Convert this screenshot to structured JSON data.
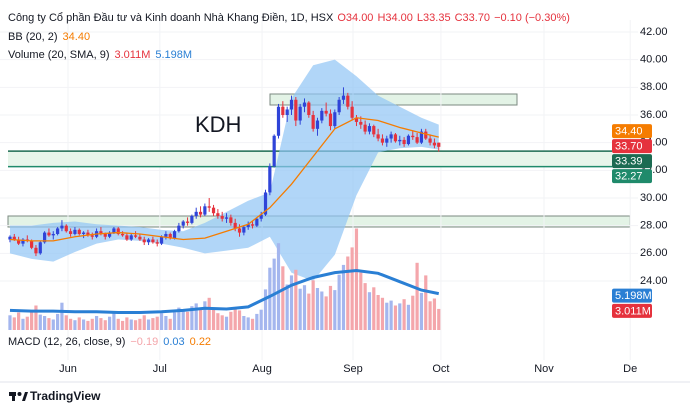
{
  "header": {
    "title": "Công ty Cổ phần Đầu tư và Kinh doanh Nhà Khang Điền, 1D, HSX",
    "quote": [
      "O34.00",
      "H34.00",
      "L33.35",
      "C33.70",
      "−0.10 (−0.30%)"
    ]
  },
  "chart_data": {
    "type": "candlestick",
    "annotation": "KDH",
    "up_color": "#2f44d8",
    "down_color": "#e5323d",
    "xlim": [
      -2.3,
      145
    ],
    "xticks": [
      {
        "value": 13.4,
        "label": "Jun"
      },
      {
        "value": 34.6,
        "label": "Jul"
      },
      {
        "value": 58.2,
        "label": "Aug"
      },
      {
        "value": 79.2,
        "label": "Sep"
      },
      {
        "value": 99.5,
        "label": "Oct"
      },
      {
        "value": 123.3,
        "label": "Nov"
      },
      {
        "value": 143.2,
        "label": "De"
      }
    ],
    "ylim": [
      24,
      42
    ],
    "yticks": [
      {
        "value": 24,
        "label": "24.00"
      },
      {
        "value": 26,
        "label": "26.00"
      },
      {
        "value": 28,
        "label": "28.00"
      },
      {
        "value": 30,
        "label": "30.00"
      },
      {
        "value": 32,
        "label": "32.00"
      },
      {
        "value": 34,
        "label": "34.00"
      },
      {
        "value": 36,
        "label": "36.00"
      },
      {
        "value": 38,
        "label": "38.00"
      },
      {
        "value": 40,
        "label": "40.00"
      },
      {
        "value": 42,
        "label": "42.00"
      }
    ],
    "ohlc": [
      [
        27.0,
        27.3,
        26.8,
        27.2
      ],
      [
        27.2,
        27.4,
        26.9,
        27.0
      ],
      [
        27.0,
        27.2,
        26.6,
        26.7
      ],
      [
        26.7,
        27.1,
        26.5,
        27.0
      ],
      [
        27.0,
        27.3,
        26.8,
        26.9
      ],
      [
        26.9,
        27.0,
        26.3,
        26.4
      ],
      [
        26.4,
        26.6,
        25.8,
        26.0
      ],
      [
        26.0,
        26.9,
        25.9,
        26.8
      ],
      [
        26.8,
        27.6,
        26.7,
        27.5
      ],
      [
        27.5,
        27.8,
        27.2,
        27.3
      ],
      [
        27.3,
        27.6,
        27.0,
        27.4
      ],
      [
        27.4,
        27.9,
        27.3,
        27.8
      ],
      [
        27.8,
        28.4,
        27.6,
        28.0
      ],
      [
        28.0,
        28.1,
        27.5,
        27.6
      ],
      [
        27.6,
        27.8,
        27.2,
        27.4
      ],
      [
        27.4,
        27.9,
        27.3,
        27.7
      ],
      [
        27.7,
        27.8,
        27.3,
        27.4
      ],
      [
        27.4,
        27.6,
        27.1,
        27.5
      ],
      [
        27.5,
        27.7,
        27.2,
        27.3
      ],
      [
        27.3,
        27.5,
        27.0,
        27.2
      ],
      [
        27.2,
        27.8,
        27.1,
        27.6
      ],
      [
        27.6,
        27.9,
        27.3,
        27.4
      ],
      [
        27.4,
        27.5,
        27.0,
        27.2
      ],
      [
        27.2,
        27.6,
        27.1,
        27.5
      ],
      [
        27.5,
        27.9,
        27.4,
        27.8
      ],
      [
        27.8,
        27.9,
        27.3,
        27.4
      ],
      [
        27.4,
        27.6,
        27.2,
        27.3
      ],
      [
        27.3,
        27.5,
        26.9,
        27.0
      ],
      [
        27.0,
        27.4,
        26.9,
        27.3
      ],
      [
        27.3,
        27.6,
        27.1,
        27.2
      ],
      [
        27.2,
        27.4,
        26.9,
        27.0
      ],
      [
        27.0,
        27.2,
        26.6,
        26.8
      ],
      [
        26.8,
        27.1,
        26.6,
        27.0
      ],
      [
        27.0,
        27.2,
        26.7,
        26.8
      ],
      [
        26.8,
        27.0,
        26.5,
        26.7
      ],
      [
        26.7,
        27.3,
        26.6,
        27.2
      ],
      [
        27.2,
        27.6,
        27.0,
        27.4
      ],
      [
        27.4,
        27.5,
        27.0,
        27.1
      ],
      [
        27.1,
        27.7,
        27.0,
        27.6
      ],
      [
        27.6,
        28.2,
        27.5,
        28.0
      ],
      [
        28.0,
        28.4,
        27.8,
        28.3
      ],
      [
        28.3,
        28.6,
        28.0,
        28.2
      ],
      [
        28.2,
        28.8,
        28.1,
        28.7
      ],
      [
        28.7,
        29.3,
        28.5,
        29.0
      ],
      [
        29.0,
        29.4,
        28.6,
        28.8
      ],
      [
        28.8,
        29.6,
        28.7,
        29.4
      ],
      [
        29.4,
        30.0,
        29.0,
        29.3
      ],
      [
        29.3,
        29.5,
        28.7,
        28.9
      ],
      [
        28.9,
        29.2,
        28.5,
        28.7
      ],
      [
        28.7,
        29.0,
        28.3,
        28.5
      ],
      [
        28.5,
        28.9,
        28.2,
        28.6
      ],
      [
        28.6,
        28.8,
        28.0,
        28.2
      ],
      [
        28.2,
        28.5,
        27.6,
        27.8
      ],
      [
        27.8,
        28.1,
        27.2,
        27.5
      ],
      [
        27.5,
        28.0,
        27.3,
        27.9
      ],
      [
        27.9,
        28.3,
        27.7,
        28.1
      ],
      [
        28.1,
        28.3,
        27.8,
        28.0
      ],
      [
        28.0,
        28.6,
        27.9,
        28.5
      ],
      [
        28.5,
        29.0,
        28.3,
        28.8
      ],
      [
        28.8,
        30.6,
        28.7,
        30.4
      ],
      [
        30.4,
        32.5,
        30.2,
        32.3
      ],
      [
        32.3,
        34.6,
        32.2,
        34.5
      ],
      [
        34.5,
        36.8,
        34.3,
        36.6
      ],
      [
        36.6,
        37.0,
        35.8,
        36.0
      ],
      [
        36.0,
        36.6,
        35.5,
        36.4
      ],
      [
        36.4,
        37.4,
        36.0,
        37.1
      ],
      [
        37.1,
        37.3,
        35.2,
        35.6
      ],
      [
        35.6,
        36.8,
        35.3,
        36.6
      ],
      [
        36.6,
        37.2,
        36.2,
        36.9
      ],
      [
        36.9,
        37.0,
        35.8,
        36.0
      ],
      [
        36.0,
        36.3,
        34.8,
        35.0
      ],
      [
        35.0,
        35.8,
        34.5,
        35.6
      ],
      [
        35.6,
        36.5,
        35.4,
        36.3
      ],
      [
        36.3,
        36.9,
        35.9,
        36.1
      ],
      [
        36.1,
        36.4,
        34.9,
        35.2
      ],
      [
        35.2,
        36.4,
        35.0,
        36.2
      ],
      [
        36.2,
        37.3,
        36.0,
        37.1
      ],
      [
        37.1,
        38.0,
        36.8,
        37.4
      ],
      [
        37.4,
        37.6,
        36.4,
        36.6
      ],
      [
        36.6,
        37.0,
        35.6,
        35.8
      ],
      [
        35.8,
        36.0,
        35.2,
        35.5
      ],
      [
        35.5,
        35.9,
        35.0,
        35.3
      ],
      [
        35.3,
        35.6,
        34.6,
        34.8
      ],
      [
        34.8,
        35.4,
        34.6,
        35.2
      ],
      [
        35.2,
        35.3,
        34.4,
        34.6
      ],
      [
        34.6,
        35.0,
        34.1,
        34.3
      ],
      [
        34.3,
        34.6,
        33.8,
        34.0
      ],
      [
        34.0,
        34.5,
        33.7,
        34.3
      ],
      [
        34.3,
        34.8,
        34.0,
        34.6
      ],
      [
        34.6,
        34.7,
        34.0,
        34.1
      ],
      [
        34.1,
        34.5,
        33.8,
        34.2
      ],
      [
        34.2,
        34.4,
        33.7,
        33.9
      ],
      [
        33.9,
        34.6,
        33.8,
        34.5
      ],
      [
        34.5,
        34.9,
        34.2,
        34.4
      ],
      [
        34.4,
        34.7,
        33.9,
        34.0
      ],
      [
        34.0,
        35.0,
        33.9,
        34.8
      ],
      [
        34.8,
        35.0,
        34.2,
        34.3
      ],
      [
        34.3,
        34.6,
        33.8,
        34.0
      ],
      [
        34.0,
        34.3,
        33.6,
        33.8
      ],
      [
        34.0,
        34.0,
        33.35,
        33.7
      ]
    ],
    "bb": {
      "name": "BB (20, 2)",
      "color": "#f57c00",
      "fill": "#90c4f5",
      "x": [
        0,
        5,
        10,
        15,
        20,
        25,
        30,
        35,
        40,
        45,
        50,
        55,
        60,
        65,
        70,
        75,
        80,
        85,
        90,
        95,
        99
      ],
      "basis": [
        27.0,
        26.9,
        26.9,
        27.2,
        27.4,
        27.5,
        27.4,
        27.2,
        27.0,
        27.1,
        27.6,
        28.1,
        29.3,
        31.0,
        33.0,
        35.0,
        35.8,
        35.6,
        35.1,
        34.7,
        34.4
      ],
      "upper": [
        28.0,
        28.0,
        28.2,
        28.3,
        28.1,
        28.0,
        27.9,
        27.7,
        27.6,
        28.2,
        29.0,
        29.8,
        30.4,
        37.2,
        39.6,
        40.0,
        38.8,
        37.4,
        36.6,
        35.8,
        35.3
      ],
      "lower": [
        26.0,
        25.6,
        25.4,
        26.1,
        26.7,
        27.0,
        26.9,
        26.7,
        26.4,
        26.0,
        26.2,
        26.4,
        27.2,
        24.6,
        24.0,
        25.9,
        30.2,
        33.3,
        33.6,
        33.7,
        33.5
      ]
    },
    "volume": {
      "name": "Volume (20, SMA, 9)",
      "vlim": [
        0,
        15
      ],
      "up_color": "#a4b6ee",
      "down_color": "#f4a6ab",
      "values": [
        2.1,
        1.8,
        2.5,
        1.6,
        1.9,
        2.8,
        3.5,
        2.2,
        2.0,
        1.7,
        1.5,
        2.3,
        3.9,
        2.1,
        1.6,
        1.4,
        1.8,
        1.5,
        1.3,
        1.6,
        2.0,
        1.7,
        1.4,
        1.9,
        2.4,
        1.6,
        1.3,
        1.8,
        1.5,
        1.4,
        1.6,
        2.1,
        1.5,
        1.7,
        1.9,
        2.4,
        2.0,
        1.6,
        2.5,
        3.2,
        3.0,
        2.6,
        3.4,
        3.8,
        2.9,
        4.1,
        4.6,
        3.2,
        2.4,
        2.1,
        1.9,
        2.6,
        3.1,
        2.8,
        2.0,
        1.8,
        1.6,
        2.3,
        2.9,
        5.8,
        8.9,
        10.2,
        12.4,
        9.1,
        6.5,
        7.8,
        8.6,
        5.9,
        6.4,
        5.2,
        7.1,
        6.0,
        5.5,
        4.8,
        6.3,
        5.7,
        7.9,
        9.3,
        10.5,
        11.8,
        14.5,
        8.2,
        6.7,
        5.4,
        6.1,
        5.0,
        4.6,
        3.9,
        4.2,
        3.5,
        3.8,
        4.4,
        3.6,
        4.9,
        9.6,
        5.3,
        7.8,
        4.1,
        4.5,
        3.011
      ],
      "sma": {
        "color": "#2a7fd4",
        "x": [
          0,
          5,
          10,
          15,
          20,
          25,
          30,
          35,
          40,
          45,
          50,
          55,
          60,
          65,
          70,
          75,
          80,
          85,
          90,
          95,
          99
        ],
        "values": [
          2.8,
          2.7,
          2.7,
          2.6,
          2.6,
          2.5,
          2.5,
          2.6,
          2.8,
          3.1,
          3.0,
          3.3,
          4.8,
          6.4,
          7.5,
          8.2,
          8.5,
          8.1,
          6.9,
          5.7,
          5.198
        ]
      }
    },
    "price_tags": [
      {
        "value": 34.4,
        "label": "34.40",
        "color": "#f57c00"
      },
      {
        "value": 33.7,
        "label": "33.70",
        "color": "#e5323d"
      },
      {
        "value": 33.39,
        "label": "33.39",
        "color": "#1c6b52"
      },
      {
        "value": 32.27,
        "label": "32.27",
        "color": "#1f8a6b"
      }
    ],
    "volume_tags": [
      {
        "value": 5.198,
        "label": "5.198M",
        "color": "#2a7fd4"
      },
      {
        "value": 3.011,
        "label": "3.011M",
        "color": "#e5323d"
      }
    ],
    "macd": {
      "name": "MACD (12, 26, close, 9)",
      "values": [
        "−0.19",
        "0.03",
        "0.22"
      ]
    }
  },
  "footer": {
    "brand": "TradingView"
  }
}
